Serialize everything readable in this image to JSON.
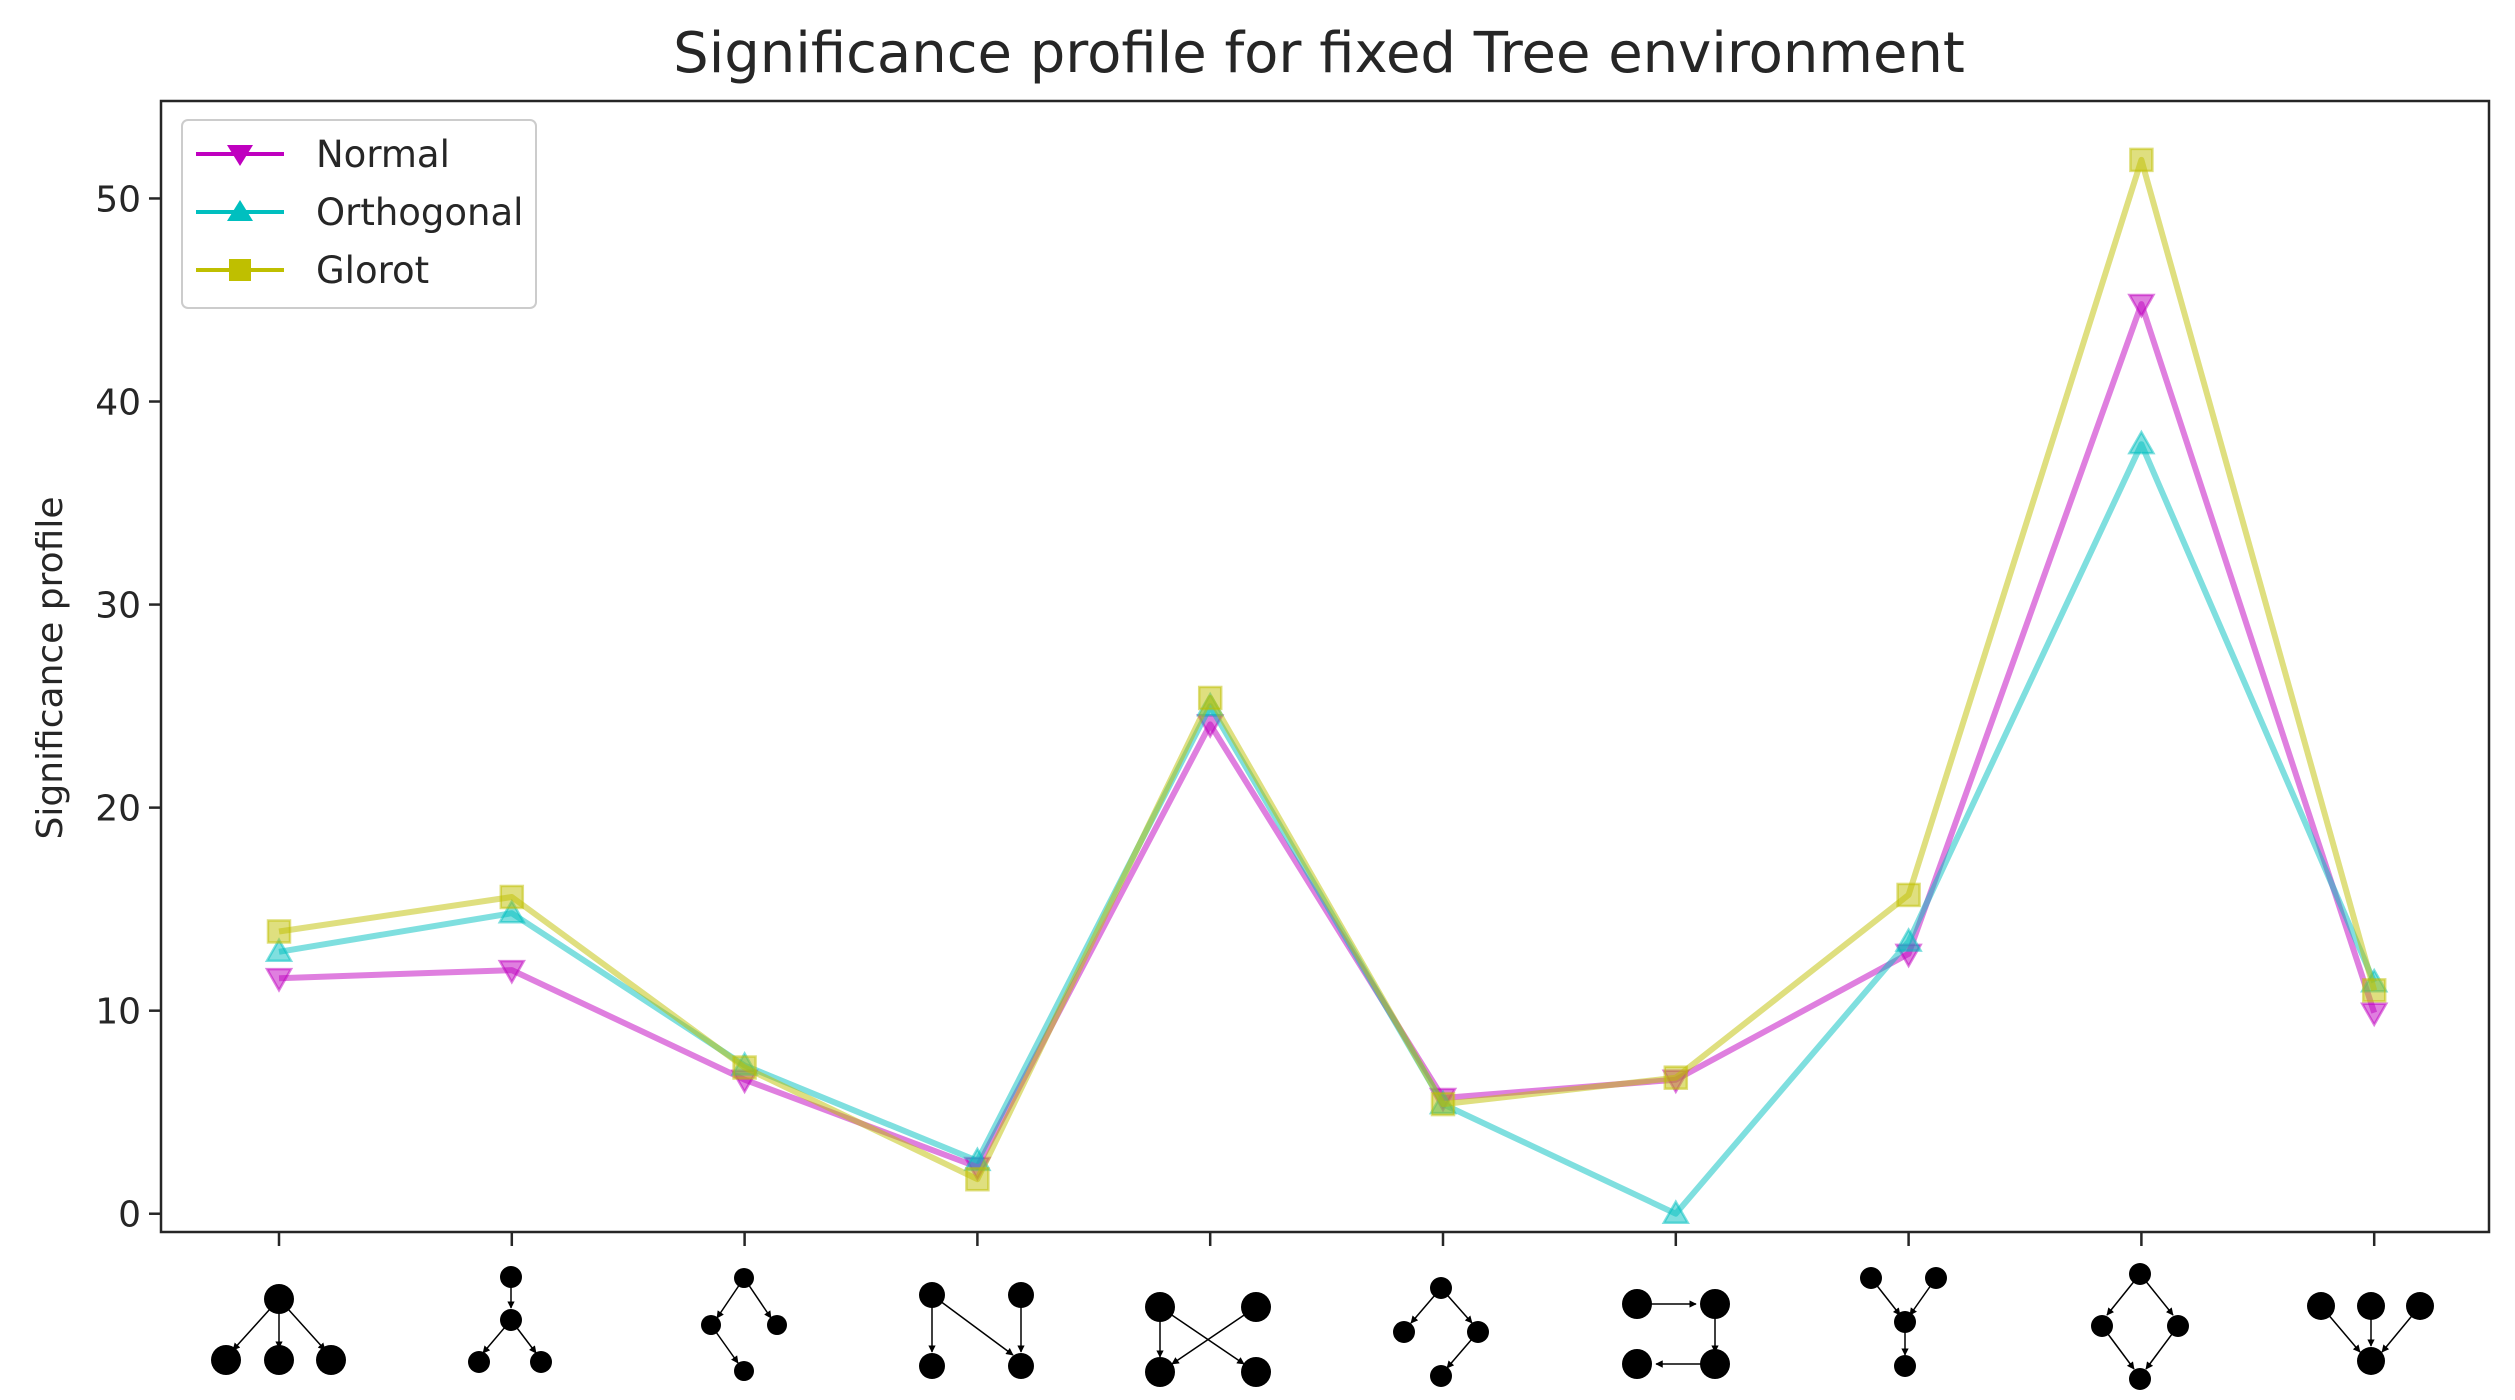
{
  "chart_data": {
    "type": "line",
    "title": "Significance profile for fixed Tree environment",
    "xlabel": "",
    "ylabel": "Significance profile",
    "ylim": [
      -0.9,
      54.8
    ],
    "yticks": [
      0,
      10,
      20,
      30,
      40,
      50
    ],
    "grid": false,
    "legend_position": "top-left",
    "x_categories": [
      "motif-1",
      "motif-2",
      "motif-3",
      "motif-4",
      "motif-5",
      "motif-6",
      "motif-7",
      "motif-8",
      "motif-9",
      "motif-10"
    ],
    "series": [
      {
        "name": "Normal",
        "color": "#bf00bf",
        "marker": "triangle-down",
        "values": [
          11.6,
          12.0,
          6.6,
          2.3,
          24.1,
          5.7,
          6.6,
          12.8,
          44.8,
          9.9
        ]
      },
      {
        "name": "Orthogonal",
        "color": "#00bfbf",
        "marker": "triangle-up",
        "values": [
          12.9,
          14.8,
          7.3,
          2.6,
          25.0,
          5.4,
          0.0,
          13.4,
          37.9,
          11.4
        ]
      },
      {
        "name": "Glorot",
        "color": "#bfbf00",
        "marker": "square",
        "values": [
          13.9,
          15.6,
          7.2,
          1.7,
          25.4,
          5.4,
          6.7,
          15.7,
          51.9,
          11.0
        ]
      }
    ]
  }
}
